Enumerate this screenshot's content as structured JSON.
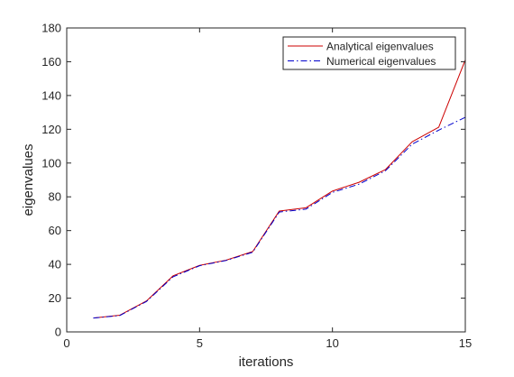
{
  "chart_data": {
    "type": "line",
    "xlabel": "iterations",
    "ylabel": "eigenvalues",
    "xlim": [
      0,
      15
    ],
    "ylim": [
      0,
      180
    ],
    "x_ticks": [
      0,
      5,
      10,
      15
    ],
    "y_ticks": [
      0,
      20,
      40,
      60,
      80,
      100,
      120,
      140,
      160,
      180
    ],
    "grid": false,
    "legend_position": "top-right",
    "x": [
      1,
      2,
      3,
      4,
      5,
      6,
      7,
      8,
      9,
      10,
      11,
      12,
      13,
      14,
      15
    ],
    "series": [
      {
        "name": "Analytical eigenvalues",
        "color": "#cc0000",
        "line_style": "solid",
        "values": [
          8.2,
          9.9,
          18.3,
          33.2,
          39.4,
          42.5,
          47.6,
          71.6,
          73.5,
          83.4,
          88.6,
          96.2,
          112.6,
          121.2,
          161.1
        ]
      },
      {
        "name": "Numerical eigenvalues",
        "color": "#0000cc",
        "line_style": "dash-dot",
        "values": [
          8.2,
          9.7,
          18.0,
          32.6,
          39.2,
          42.3,
          47.2,
          71.0,
          72.7,
          82.6,
          87.5,
          95.5,
          111.2,
          119.5,
          127.1
        ]
      }
    ]
  }
}
